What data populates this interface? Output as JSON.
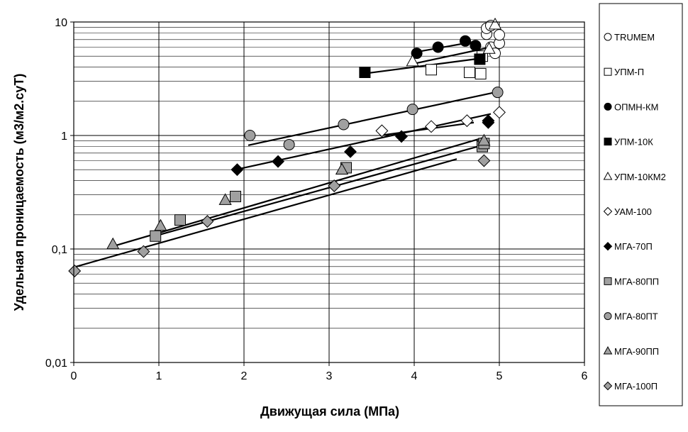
{
  "chart_data": {
    "type": "scatter",
    "title": "",
    "xlabel": "Движущая сила (МПа)",
    "ylabel": "Удельная проницаемость (м3/м2.суТ)",
    "xlim": [
      0,
      6
    ],
    "ylim": [
      0.01,
      10
    ],
    "yscale": "log",
    "x_ticks": [
      0,
      1,
      2,
      3,
      4,
      5,
      6
    ],
    "x_tick_labels": [
      "0",
      "1",
      "2",
      "3",
      "4",
      "5",
      "6"
    ],
    "y_ticks": [
      0.01,
      0.1,
      1,
      10
    ],
    "y_tick_labels": [
      "0,01",
      "0,1",
      "1",
      "10"
    ],
    "grid": true,
    "legend_position": "right",
    "series": [
      {
        "name": "TRUMEM",
        "marker": "circle",
        "fill": "#ffffff",
        "points": [
          [
            4.85,
            7.8
          ],
          [
            4.9,
            6.0
          ],
          [
            4.95,
            5.3
          ],
          [
            5.0,
            6.5
          ],
          [
            5.0,
            7.7
          ],
          [
            4.85,
            8.8
          ],
          [
            4.9,
            9.3
          ]
        ]
      },
      {
        "name": "УПМ-П",
        "marker": "square",
        "fill": "#ffffff",
        "points": [
          [
            4.2,
            3.8
          ],
          [
            4.65,
            3.6
          ],
          [
            4.78,
            3.5
          ],
          [
            4.8,
            5.0
          ]
        ]
      },
      {
        "name": "ОПМН-КМ",
        "marker": "circle",
        "fill": "#000000",
        "points": [
          [
            4.03,
            5.3
          ],
          [
            4.28,
            6.0
          ],
          [
            4.6,
            6.8
          ],
          [
            4.72,
            6.2
          ]
        ],
        "trend": [
          [
            4.0,
            5.4
          ],
          [
            4.75,
            6.8
          ]
        ]
      },
      {
        "name": "УПМ-10К",
        "marker": "square",
        "fill": "#000000",
        "points": [
          [
            3.42,
            3.6
          ],
          [
            4.77,
            4.7
          ]
        ],
        "trend": [
          [
            3.4,
            3.5
          ],
          [
            4.8,
            4.8
          ]
        ]
      },
      {
        "name": "УПМ-10КМ2",
        "marker": "triangle",
        "fill": "#ffffff",
        "points": [
          [
            3.98,
            4.5
          ],
          [
            4.88,
            5.8
          ],
          [
            4.95,
            9.5
          ]
        ],
        "trend": [
          [
            4.0,
            4.3
          ],
          [
            4.9,
            6.0
          ]
        ]
      },
      {
        "name": "УАМ-100",
        "marker": "diamond",
        "fill": "#ffffff",
        "points": [
          [
            3.62,
            1.1
          ],
          [
            4.2,
            1.2
          ],
          [
            4.62,
            1.35
          ],
          [
            5.0,
            1.6
          ]
        ],
        "trend": [
          [
            3.6,
            1.0
          ],
          [
            4.7,
            1.3
          ]
        ]
      },
      {
        "name": "МГА-70П",
        "marker": "diamond",
        "fill": "#000000",
        "points": [
          [
            1.92,
            0.5
          ],
          [
            2.4,
            0.59
          ],
          [
            3.25,
            0.72
          ],
          [
            3.85,
            0.98
          ],
          [
            4.87,
            1.35
          ],
          [
            4.87,
            1.3
          ]
        ],
        "trend": [
          [
            1.9,
            0.5
          ],
          [
            4.9,
            1.55
          ]
        ]
      },
      {
        "name": "МГА-80ПП",
        "marker": "square",
        "fill": "#a0a0a0",
        "points": [
          [
            0.96,
            0.13
          ],
          [
            1.25,
            0.18
          ],
          [
            1.9,
            0.29
          ],
          [
            3.2,
            0.52
          ],
          [
            4.8,
            0.8
          ],
          [
            4.82,
            0.85
          ]
        ],
        "trend": [
          [
            0.95,
            0.13
          ],
          [
            4.8,
            0.82
          ]
        ]
      },
      {
        "name": "МГА-80ПТ",
        "marker": "circle",
        "fill": "#a0a0a0",
        "points": [
          [
            2.07,
            1.0
          ],
          [
            2.53,
            0.83
          ],
          [
            3.17,
            1.25
          ],
          [
            3.98,
            1.7
          ],
          [
            4.98,
            2.4
          ]
        ],
        "trend": [
          [
            2.05,
            0.82
          ],
          [
            4.95,
            2.4
          ]
        ]
      },
      {
        "name": "МГА-90ПП",
        "marker": "triangle",
        "fill": "#a0a0a0",
        "points": [
          [
            0.46,
            0.11
          ],
          [
            1.02,
            0.16
          ],
          [
            1.78,
            0.27
          ],
          [
            3.15,
            0.5
          ],
          [
            4.82,
            0.9
          ]
        ],
        "trend": [
          [
            0.45,
            0.105
          ],
          [
            4.8,
            0.95
          ]
        ]
      },
      {
        "name": "МГА-100П",
        "marker": "diamond",
        "fill": "#a0a0a0",
        "points": [
          [
            0.01,
            0.064
          ],
          [
            0.82,
            0.095
          ],
          [
            1.57,
            0.175
          ],
          [
            3.06,
            0.36
          ],
          [
            4.82,
            0.6
          ]
        ],
        "trend": [
          [
            0.0,
            0.069
          ],
          [
            4.5,
            0.62
          ]
        ]
      }
    ]
  }
}
